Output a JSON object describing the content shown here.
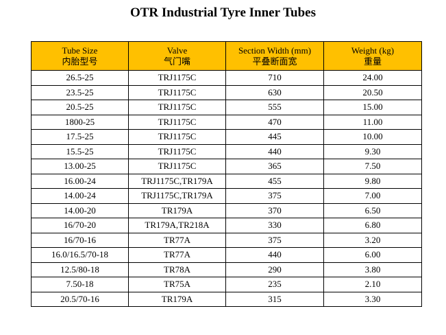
{
  "title": "OTR Industrial Tyre Inner Tubes",
  "table": {
    "headers": [
      {
        "en": "Tube Size",
        "cn": "内胎型号"
      },
      {
        "en": "Valve",
        "cn": "气门嘴"
      },
      {
        "en": "Section Width (mm)",
        "cn": "平叠断面宽"
      },
      {
        "en": "Weight (kg)",
        "cn": "重量"
      }
    ],
    "rows": [
      [
        "26.5-25",
        "TRJ1175C",
        "710",
        "24.00"
      ],
      [
        "23.5-25",
        "TRJ1175C",
        "630",
        "20.50"
      ],
      [
        "20.5-25",
        "TRJ1175C",
        "555",
        "15.00"
      ],
      [
        "1800-25",
        "TRJ1175C",
        "470",
        "11.00"
      ],
      [
        "17.5-25",
        "TRJ1175C",
        "445",
        "10.00"
      ],
      [
        "15.5-25",
        "TRJ1175C",
        "440",
        "9.30"
      ],
      [
        "13.00-25",
        "TRJ1175C",
        "365",
        "7.50"
      ],
      [
        "16.00-24",
        "TRJ1175C,TR179A",
        "455",
        "9.80"
      ],
      [
        "14.00-24",
        "TRJ1175C,TR179A",
        "375",
        "7.00"
      ],
      [
        "14.00-20",
        "TR179A",
        "370",
        "6.50"
      ],
      [
        "16/70-20",
        "TR179A,TR218A",
        "330",
        "6.80"
      ],
      [
        "16/70-16",
        "TR77A",
        "375",
        "3.20"
      ],
      [
        "16.0/16.5/70-18",
        "TR77A",
        "440",
        "6.00"
      ],
      [
        "12.5/80-18",
        "TR78A",
        "290",
        "3.80"
      ],
      [
        "7.50-18",
        "TR75A",
        "235",
        "2.10"
      ],
      [
        "20.5/70-16",
        "TR179A",
        "315",
        "3.30"
      ]
    ]
  },
  "colors": {
    "header_background": "#ffc000",
    "border": "#000000"
  }
}
